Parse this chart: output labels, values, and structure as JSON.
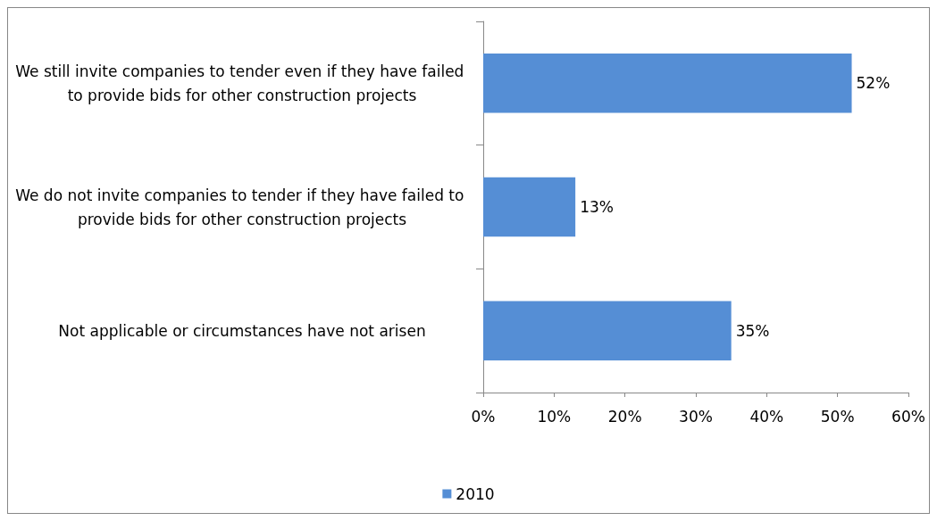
{
  "chart_data": {
    "type": "bar",
    "orientation": "horizontal",
    "categories": [
      "We still invite companies to tender even if they have failed to provide bids for other construction projects",
      "We do not invite companies to tender if they have failed to provide bids for other construction projects",
      "Not applicable or circumstances have not arisen"
    ],
    "series": [
      {
        "name": "2010",
        "color": "#558ed5",
        "values": [
          52,
          13,
          35
        ],
        "value_labels": [
          "52%",
          "13%",
          "35%"
        ]
      }
    ],
    "xlim": [
      0,
      60
    ],
    "xticks": [
      {
        "value": 0,
        "label": "0%"
      },
      {
        "value": 10,
        "label": "10%"
      },
      {
        "value": 20,
        "label": "20%"
      },
      {
        "value": 30,
        "label": "30%"
      },
      {
        "value": 40,
        "label": "40%"
      },
      {
        "value": 50,
        "label": "50%"
      },
      {
        "value": 60,
        "label": "60%"
      }
    ],
    "grid": false,
    "legend": "bottom"
  }
}
